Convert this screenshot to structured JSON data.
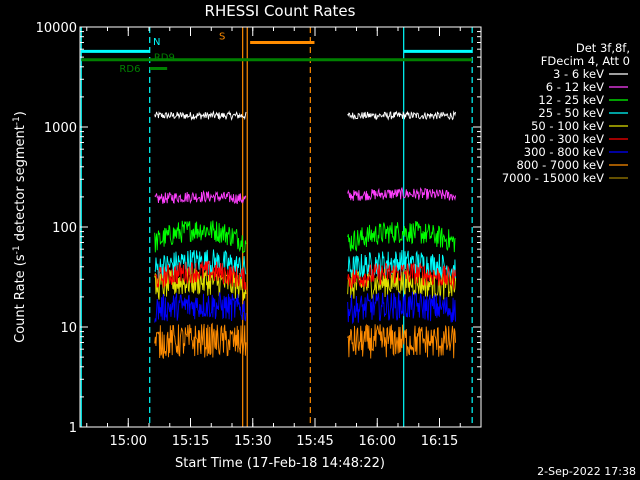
{
  "chart_data": {
    "type": "line",
    "title": "RHESSI Count Rates",
    "xlabel": "Start Time (17-Feb-18 14:48:22)",
    "ylabel_prefix": "Count Rate (s",
    "ylabel_exp1": "-1",
    "ylabel_mid": " detector segment",
    "ylabel_exp2": "-1",
    "ylabel_suffix": ")",
    "x_start_minutes": 0,
    "x_range_minutes": [
      0,
      96.63
    ],
    "x_ticks": [
      {
        "t": 11.63,
        "label": "15:00"
      },
      {
        "t": 26.63,
        "label": "15:15"
      },
      {
        "t": 41.63,
        "label": "15:30"
      },
      {
        "t": 56.63,
        "label": "15:45"
      },
      {
        "t": 71.63,
        "label": "16:00"
      },
      {
        "t": 86.63,
        "label": "16:15"
      }
    ],
    "y_scale": "log",
    "ylim": [
      1,
      10000
    ],
    "y_ticks": [
      {
        "v": 1,
        "label": "1"
      },
      {
        "v": 10,
        "label": "10"
      },
      {
        "v": 100,
        "label": "100"
      },
      {
        "v": 1000,
        "label": "1000"
      },
      {
        "v": 10000,
        "label": "10000"
      }
    ],
    "legend_header": [
      "Det 3f,8f,",
      "FDecim 4, Att 0"
    ],
    "series": [
      {
        "name": "3 - 6 keV",
        "color": "#ffffff",
        "segments": [
          [
            18.0,
            40.0,
            1300
          ],
          [
            64.5,
            90.5,
            1300
          ]
        ],
        "noise": 0.04,
        "bump": 0
      },
      {
        "name": "6 - 12 keV",
        "color": "#ff40ff",
        "segments": [
          [
            18.0,
            40.0,
            190
          ],
          [
            64.5,
            90.5,
            205
          ]
        ],
        "noise": 0.06,
        "bump": 0.06
      },
      {
        "name": "12 - 25 keV",
        "color": "#00ff00",
        "segments": [
          [
            18.0,
            40.0,
            70
          ],
          [
            64.5,
            90.5,
            70
          ]
        ],
        "noise": 0.12,
        "bump": 0.35
      },
      {
        "name": "25 - 50 keV",
        "color": "#00ffff",
        "segments": [
          [
            18.0,
            40.0,
            38
          ],
          [
            64.5,
            90.5,
            38
          ]
        ],
        "noise": 0.14,
        "bump": 0.2
      },
      {
        "name": "50 - 100 keV",
        "color": "#e0e000",
        "segments": [
          [
            18.0,
            40.0,
            25
          ],
          [
            64.5,
            90.5,
            25
          ]
        ],
        "noise": 0.15,
        "bump": 0.15
      },
      {
        "name": "100 - 300 keV",
        "color": "#ff0000",
        "segments": [
          [
            18.0,
            40.0,
            30
          ],
          [
            64.5,
            90.5,
            30
          ]
        ],
        "noise": 0.12,
        "bump": 0.2
      },
      {
        "name": "300 - 800 keV",
        "color": "#0000ff",
        "segments": [
          [
            18.0,
            40.0,
            15
          ],
          [
            64.5,
            90.5,
            15
          ]
        ],
        "noise": 0.15,
        "bump": 0.1
      },
      {
        "name": "800 - 7000 keV",
        "color": "#ff8c00",
        "segments": [
          [
            18.0,
            40.0,
            7
          ],
          [
            64.5,
            90.5,
            7
          ]
        ],
        "noise": 0.18,
        "bump": 0.05
      },
      {
        "name": "7000 - 15000 keV",
        "color": "#a08000",
        "segments": [],
        "noise": 0,
        "bump": 0
      }
    ],
    "vlines": [
      {
        "t": 0.3,
        "color": "#00ffff",
        "dashed": false
      },
      {
        "t": 16.8,
        "color": "#00ffff",
        "dashed": true
      },
      {
        "t": 39.2,
        "color": "#ff8c00",
        "dashed": false
      },
      {
        "t": 40.3,
        "color": "#ff8c00",
        "dashed": false
      },
      {
        "t": 55.5,
        "color": "#ff8c00",
        "dashed": true
      },
      {
        "t": 78.0,
        "color": "#00ffff",
        "dashed": false
      },
      {
        "t": 94.5,
        "color": "#00ffff",
        "dashed": true
      }
    ],
    "state_bars": [
      {
        "t0": 0.3,
        "t1": 16.8,
        "y": 5700,
        "color": "#00ffff",
        "label": "N",
        "label_t": 17.6,
        "label_y": 6600
      },
      {
        "t0": 0.3,
        "t1": 94.5,
        "y": 4700,
        "color": "#008000",
        "label": "",
        "label_t": 0,
        "label_y": 0
      },
      {
        "t0": 16.8,
        "t1": 21.0,
        "y": 3850,
        "color": "#008000",
        "label": "RD9",
        "label_t": 17.8,
        "label_y": 4650
      },
      {
        "t0": 41.0,
        "t1": 56.5,
        "y": 7000,
        "color": "#ff8c00",
        "label": "S",
        "label_t": 33.5,
        "label_y": 7500
      },
      {
        "t0": 78.0,
        "t1": 94.5,
        "y": 5700,
        "color": "#00ffff",
        "label": "",
        "label_t": 0,
        "label_y": 0
      }
    ],
    "extra_labels": [
      {
        "text": "RD6",
        "t": 9.5,
        "y": 3550,
        "color": "#008000"
      }
    ]
  },
  "footer_date": "2-Sep-2022 17:38"
}
